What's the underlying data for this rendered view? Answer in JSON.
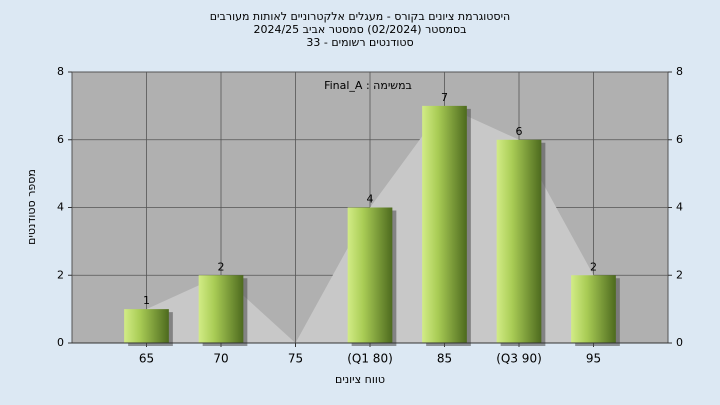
{
  "chart_data": {
    "type": "bar",
    "title": [
      "היסטוגרמת ציונים בקורס - מעגלים אלקטרוניים לאותות מעורבים",
      "בסמסטר  (02/2024)  סמסטר אביב 2024/25",
      "סטודנטים רשומים - 33"
    ],
    "annotation": "Final_A : במשימה",
    "y_label": "מספר סטודנטים",
    "x_label": "טווח ציונים",
    "categories": [
      "65",
      "70",
      "75",
      "(Q1 80)",
      "85",
      "(Q3 90)",
      "95"
    ],
    "values": [
      1,
      2,
      0,
      4,
      7,
      6,
      2
    ],
    "ylim": [
      0,
      8
    ],
    "yticks": [
      0,
      2,
      4,
      6,
      8
    ],
    "y2lim": [
      0,
      8
    ],
    "y2ticks": [
      0,
      2,
      4,
      6,
      8
    ],
    "grid": true
  }
}
